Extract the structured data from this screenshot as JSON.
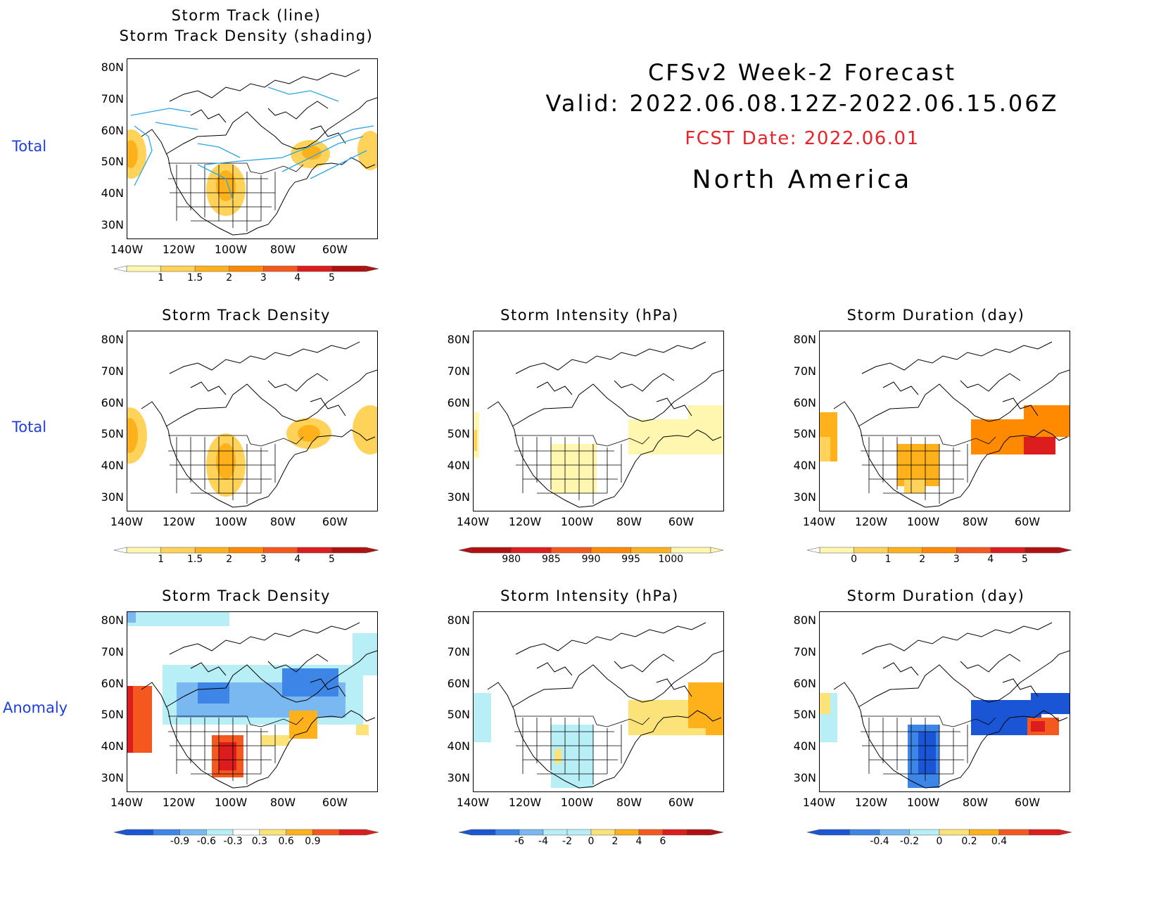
{
  "header": {
    "title_line1": "CFSv2 Week-2 Forecast",
    "title_line2": "Valid: 2022.06.08.12Z-2022.06.15.06Z",
    "fcst_date": "FCST Date: 2022.06.01",
    "region": "North America"
  },
  "row_labels": {
    "row1": "Total",
    "row2": "Total",
    "row3": "Anomaly"
  },
  "axes": {
    "lat_labels": [
      "80N",
      "70N",
      "60N",
      "50N",
      "40N",
      "30N"
    ],
    "lon_labels": [
      "140W",
      "120W",
      "100W",
      "80W",
      "60W"
    ]
  },
  "panels": {
    "p1": {
      "title_line1": "Storm Track (line)",
      "title_line2": "Storm Track Density (shading)"
    },
    "p2": {
      "title": "Storm Track Density"
    },
    "p3": {
      "title": "Storm Intensity (hPa)"
    },
    "p4": {
      "title": "Storm Duration (day)"
    },
    "p5": {
      "title": "Storm Track Density"
    },
    "p6": {
      "title": "Storm Intensity (hPa)"
    },
    "p7": {
      "title": "Storm Duration (day)"
    }
  },
  "colorbars": {
    "density": {
      "labels": [
        "1",
        "1.5",
        "2",
        "3",
        "4",
        "5"
      ],
      "colors": [
        "#fff6b0",
        "#ffd35a",
        "#ffb11c",
        "#ff8a00",
        "#f5581e",
        "#dd1d1d",
        "#b01010"
      ]
    },
    "intensity": {
      "labels": [
        "980",
        "985",
        "990",
        "995",
        "1000"
      ],
      "colors": [
        "#b01010",
        "#dd1d1d",
        "#f5581e",
        "#ff8a00",
        "#ffb11c",
        "#fff6b0"
      ]
    },
    "duration": {
      "labels": [
        "0",
        "1",
        "2",
        "3",
        "4",
        "5"
      ],
      "colors": [
        "#fff6b0",
        "#ffd35a",
        "#ffb11c",
        "#ff8a00",
        "#f5581e",
        "#dd1d1d",
        "#b01010"
      ]
    },
    "density_anom": {
      "labels": [
        "-0.9",
        "-0.6",
        "-0.3",
        "0.3",
        "0.6",
        "0.9"
      ],
      "colors": [
        "#1a55d6",
        "#3d86e8",
        "#79b8f0",
        "#b8eef6",
        "#ffffff",
        "#fbe37a",
        "#ffb11c",
        "#f5581e",
        "#dd1d1d"
      ]
    },
    "intensity_anom": {
      "labels": [
        "-6",
        "-4",
        "-2",
        "0",
        "2",
        "4",
        "6"
      ],
      "colors": [
        "#1a55d6",
        "#3d86e8",
        "#79b8f0",
        "#b8eef6",
        "#b8eef6",
        "#fbe37a",
        "#ffb11c",
        "#f5581e",
        "#dd1d1d",
        "#b01010"
      ]
    },
    "duration_anom": {
      "labels": [
        "-0.4",
        "-0.2",
        "0",
        "0.2",
        "0.4"
      ],
      "colors": [
        "#1a55d6",
        "#3d86e8",
        "#79b8f0",
        "#b8eef6",
        "#fbe37a",
        "#ffb11c",
        "#f5581e",
        "#dd1d1d"
      ]
    }
  }
}
